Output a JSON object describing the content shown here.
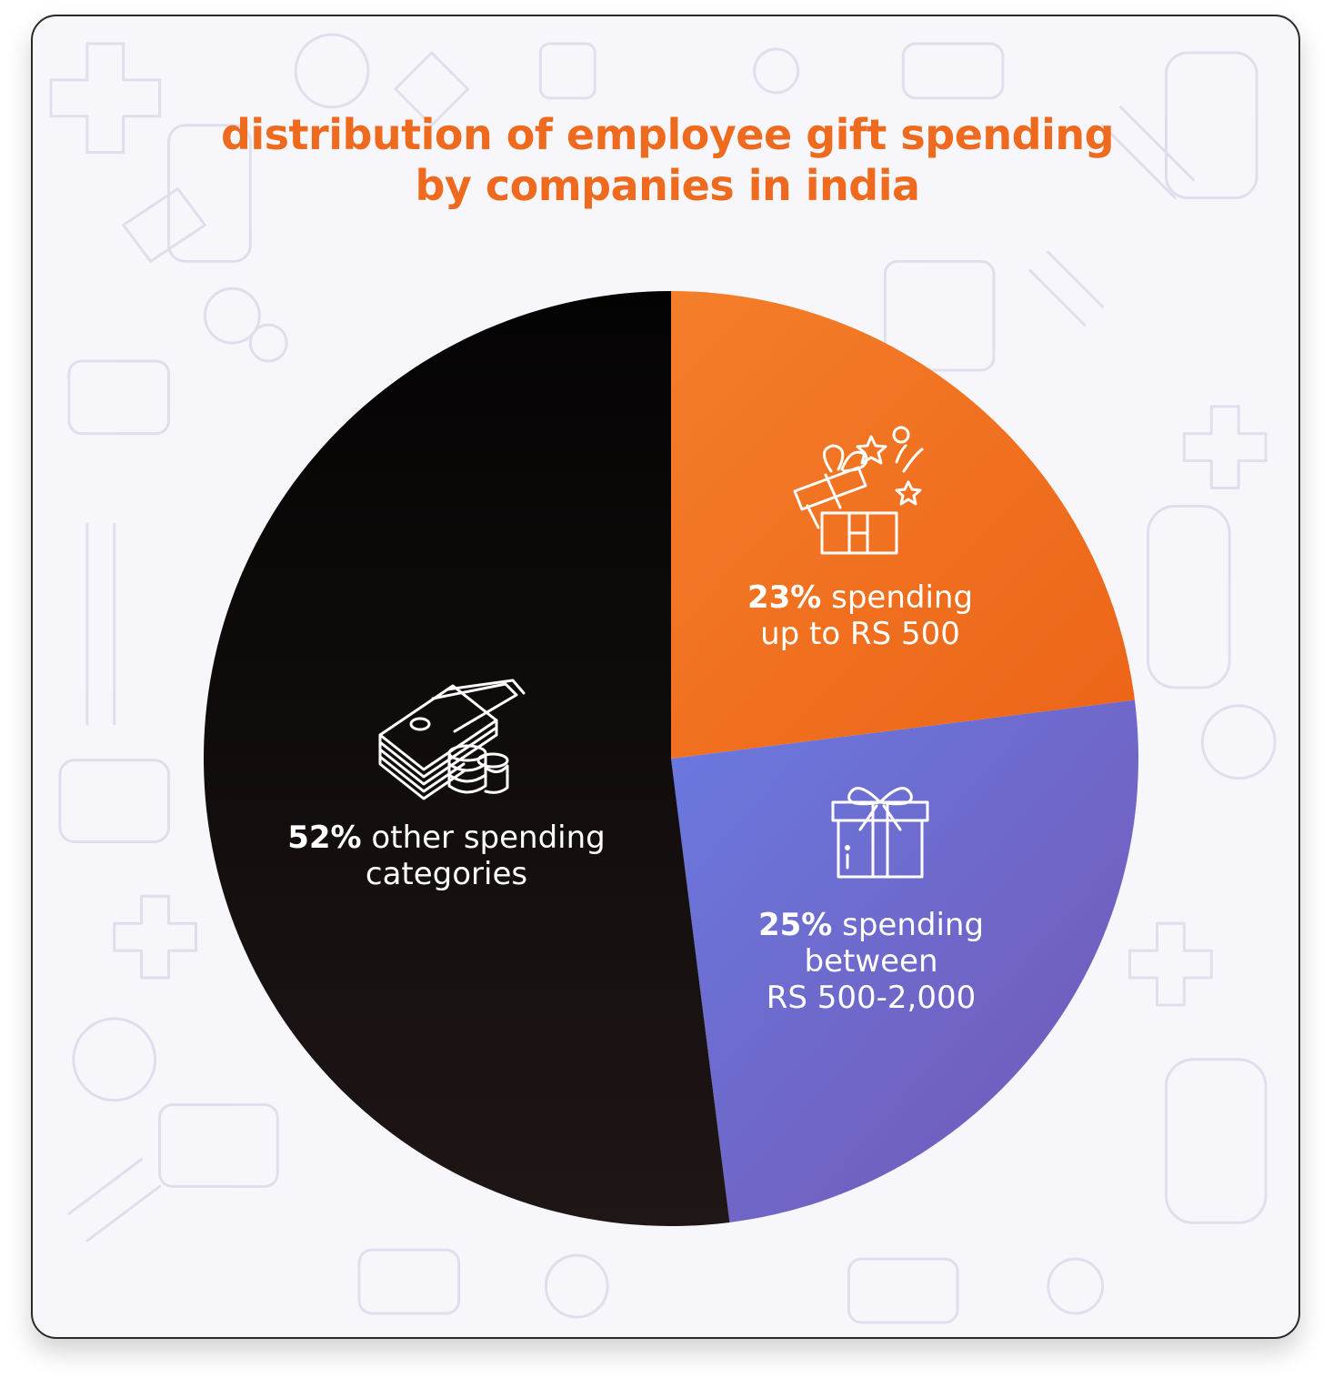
{
  "chart_data": {
    "type": "pie",
    "title_lines": [
      "distribution of employee gift spending",
      "by companies in india"
    ],
    "colors": {
      "title": "#ee6a1f",
      "orange": "#f07424",
      "purple": "#6f62c8",
      "black": "#120d0c"
    },
    "slices": [
      {
        "value": 23,
        "pct_label": "23%",
        "text_lines": [
          " spending",
          "up to RS 500"
        ],
        "icon": "gift-box-open-icon",
        "color": "#f07424"
      },
      {
        "value": 25,
        "pct_label": "25%",
        "text_lines": [
          " spending",
          "between",
          "RS 500-2,000"
        ],
        "icon": "gift-box-ribbon-icon",
        "color": "#6f62c8"
      },
      {
        "value": 52,
        "pct_label": "52%",
        "text_lines": [
          " other spending",
          "categories"
        ],
        "icon": "money-stack-coins-icon",
        "color": "#120d0c"
      }
    ]
  }
}
